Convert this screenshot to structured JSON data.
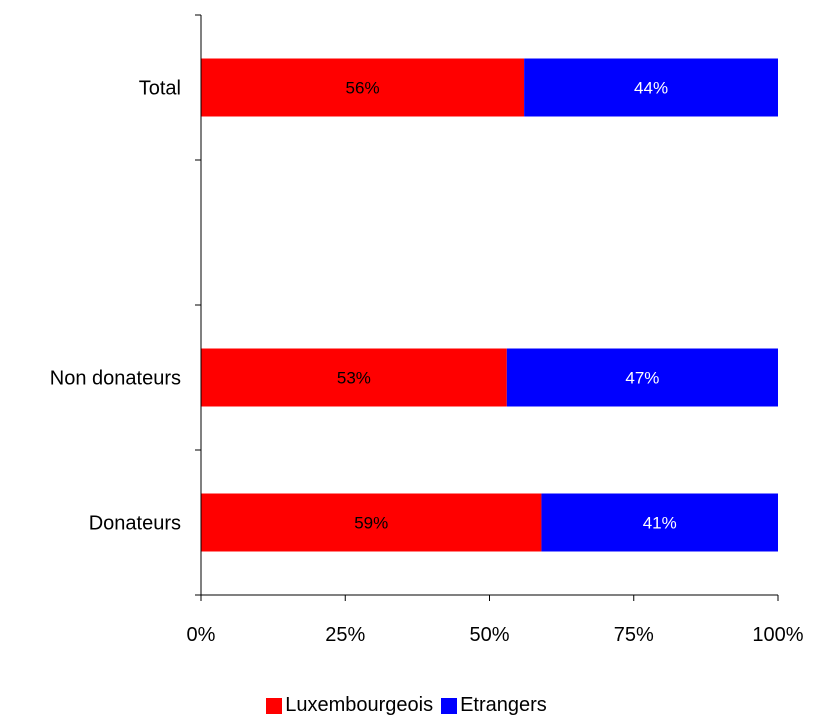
{
  "chart_data": {
    "type": "bar",
    "orientation": "horizontal",
    "stacked": true,
    "categories": [
      "Total",
      "",
      "Non donateurs",
      "Donateurs"
    ],
    "series": [
      {
        "name": "Luxembourgeois",
        "color": "#ff0000",
        "values": [
          56,
          null,
          53,
          59
        ],
        "labels": [
          "56%",
          "",
          "53%",
          "59%"
        ],
        "label_color": "#000000"
      },
      {
        "name": "Etrangers",
        "color": "#0000ff",
        "values": [
          44,
          null,
          47,
          41
        ],
        "labels": [
          "44%",
          "",
          "47%",
          "41%"
        ],
        "label_color": "#ffffff"
      }
    ],
    "xlim": [
      0,
      100
    ],
    "xticks": [
      "0%",
      "25%",
      "50%",
      "75%",
      "100%"
    ],
    "xtick_values": [
      0,
      25,
      50,
      75,
      100
    ],
    "xlabel": "",
    "ylabel": "",
    "title": "",
    "grid": false,
    "legend_position": "bottom"
  }
}
